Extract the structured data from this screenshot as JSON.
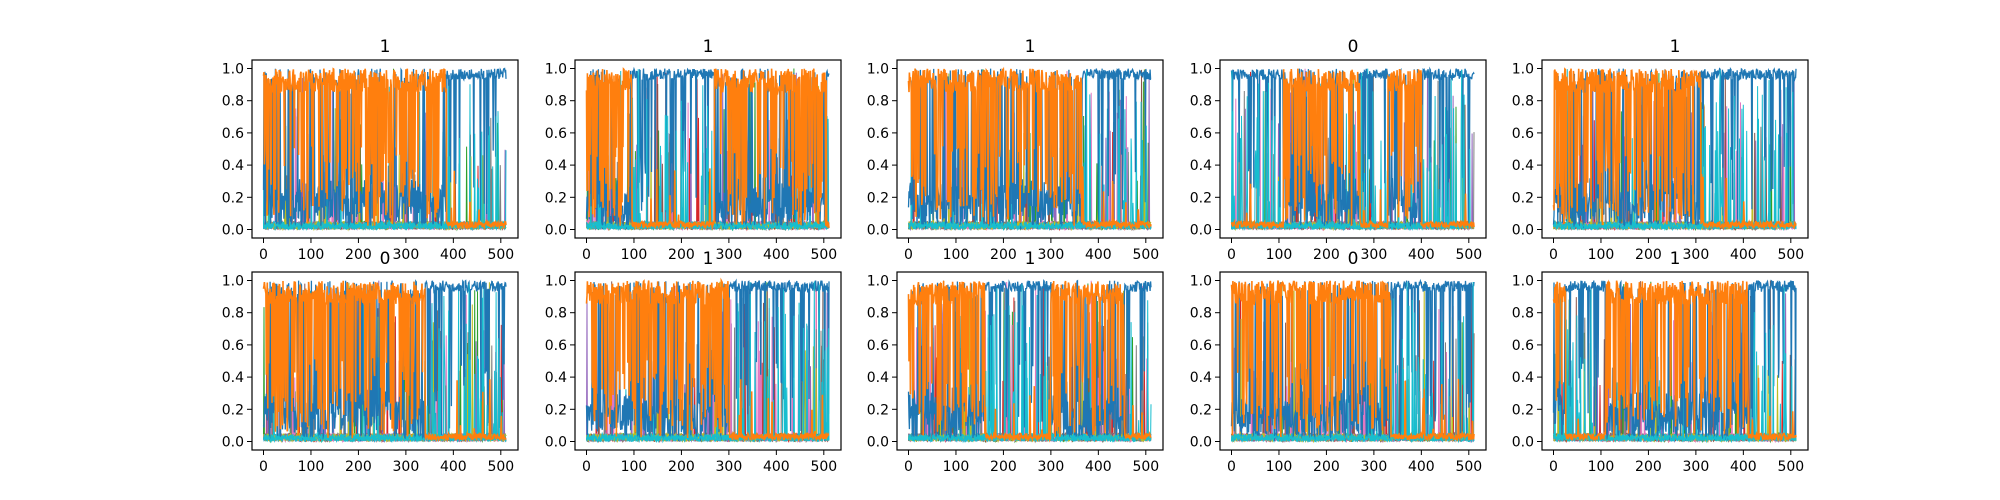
{
  "chart_data": {
    "type": "line",
    "layout": "2x5 grid of subplots",
    "xlim": [
      0,
      512
    ],
    "ylim": [
      0.0,
      1.0
    ],
    "x_ticks": [
      "0",
      "100",
      "200",
      "300",
      "400",
      "500"
    ],
    "y_ticks": [
      "0.0",
      "0.2",
      "0.4",
      "0.6",
      "0.8",
      "1.0"
    ],
    "grid": false,
    "legend": false,
    "series_colors": {
      "blue": "#1f77b4",
      "orange": "#ff7f0e",
      "green": "#2ca02c",
      "red": "#d62728",
      "purple": "#9467bd",
      "brown": "#8c564b",
      "pink": "#e377c2",
      "gray": "#7f7f7f",
      "olive": "#bcbd22",
      "cyan": "#17becf"
    },
    "panels": [
      {
        "title": "1",
        "orange_segments": [
          [
            0,
            385
          ]
        ]
      },
      {
        "title": "1",
        "orange_segments": [
          [
            0,
            95
          ],
          [
            270,
            505
          ]
        ]
      },
      {
        "title": "1",
        "orange_segments": [
          [
            0,
            365
          ]
        ]
      },
      {
        "title": "0",
        "orange_segments": [
          [
            110,
            270
          ],
          [
            330,
            400
          ]
        ]
      },
      {
        "title": "1",
        "orange_segments": [
          [
            0,
            310
          ]
        ]
      },
      {
        "title": "0",
        "orange_segments": [
          [
            0,
            340
          ]
        ]
      },
      {
        "title": "1",
        "orange_segments": [
          [
            0,
            300
          ]
        ]
      },
      {
        "title": "1",
        "orange_segments": [
          [
            0,
            160
          ],
          [
            300,
            455
          ]
        ]
      },
      {
        "title": "0",
        "orange_segments": [
          [
            0,
            335
          ]
        ]
      },
      {
        "title": "1",
        "orange_segments": [
          [
            0,
            25
          ],
          [
            110,
            410
          ]
        ]
      }
    ]
  }
}
